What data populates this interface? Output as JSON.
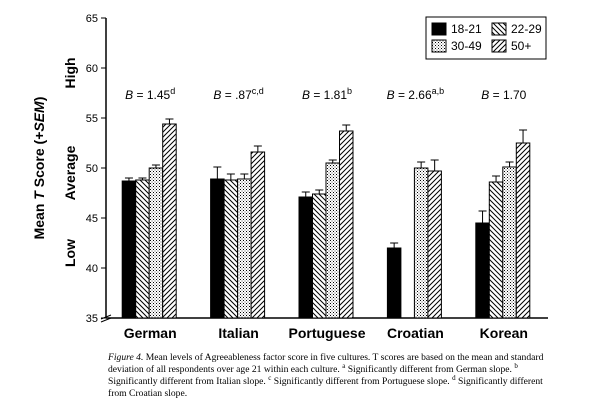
{
  "chart_data": {
    "type": "bar",
    "ylabel": "Mean T Score (+SEM)",
    "ylim": [
      35,
      65
    ],
    "yticks": [
      35,
      40,
      45,
      50,
      55,
      60,
      65
    ],
    "yticks_text": [
      "35",
      "40",
      "45",
      "50",
      "55",
      "60",
      "65"
    ],
    "side_labels": [
      {
        "text": "Low",
        "value": 41.5
      },
      {
        "text": "Average",
        "value": 49.5
      },
      {
        "text": "High",
        "value": 59.5
      }
    ],
    "categories": [
      "German",
      "Italian",
      "Portuguese",
      "Croatian",
      "Korean"
    ],
    "series": [
      {
        "name": "18-21",
        "pattern": "solid",
        "values": [
          48.7,
          48.9,
          47.1,
          42.0,
          44.5
        ],
        "errors": [
          0.3,
          1.2,
          0.5,
          0.5,
          1.2
        ]
      },
      {
        "name": "22-29",
        "pattern": "hatch-back",
        "values": [
          48.8,
          48.8,
          47.4,
          null,
          48.6
        ],
        "errors": [
          0.2,
          0.6,
          0.4,
          null,
          0.6
        ]
      },
      {
        "name": "30-49",
        "pattern": "dots",
        "values": [
          50.0,
          48.9,
          50.5,
          50.0,
          50.1
        ],
        "errors": [
          0.3,
          0.5,
          0.3,
          0.6,
          0.5
        ]
      },
      {
        "name": "50+",
        "pattern": "hatch-fwd",
        "values": [
          54.4,
          51.6,
          53.7,
          49.7,
          52.5
        ],
        "errors": [
          0.5,
          0.6,
          0.6,
          1.1,
          1.3
        ]
      }
    ],
    "annotations": [
      {
        "category": "German",
        "prefix": "B",
        "text": " = 1.45",
        "sup": "d"
      },
      {
        "category": "Italian",
        "prefix": "B",
        "text": " = .87",
        "sup": "c,d"
      },
      {
        "category": "Portuguese",
        "prefix": "B",
        "text": " = 1.81",
        "sup": "b"
      },
      {
        "category": "Croatian",
        "prefix": "B",
        "text": " = 2.66",
        "sup": "a,b"
      },
      {
        "category": "Korean",
        "prefix": "B",
        "text": " = 1.70",
        "sup": ""
      }
    ],
    "legend_position": "top-right"
  },
  "caption": {
    "figure_label": "Figure 4.",
    "text": "Mean levels of Agreeableness factor score in five cultures. T scores are based on the mean and standard deviation of all respondents over age 21 within each culture.",
    "notes": [
      {
        "mark": "a",
        "text": "Significantly different from German slope."
      },
      {
        "mark": "b",
        "text": "Significantly different from Italian slope."
      },
      {
        "mark": "c",
        "text": "Significantly different from Portuguese slope."
      },
      {
        "mark": "d",
        "text": "Significantly different from Croatian slope."
      }
    ]
  }
}
